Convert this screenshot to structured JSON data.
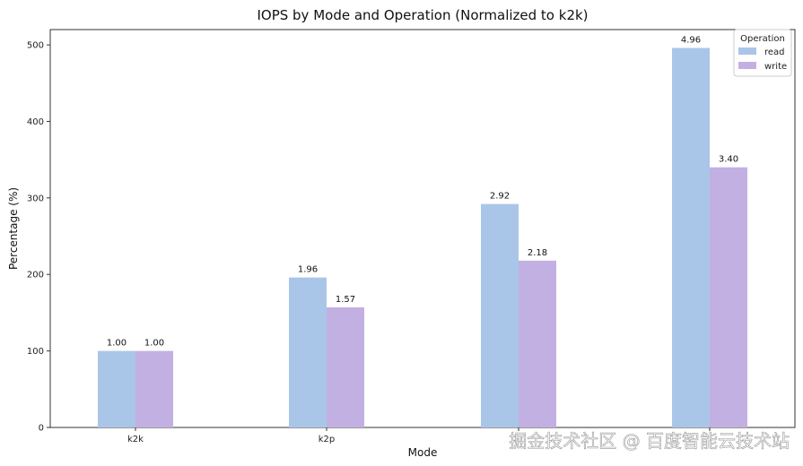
{
  "chart_data": {
    "type": "bar",
    "title": "IOPS by Mode and Operation (Normalized to k2k)",
    "xlabel": "Mode",
    "ylabel": "Percentage (%)",
    "categories": [
      "k2k",
      "k2p",
      "",
      ""
    ],
    "ylim": [
      0,
      520
    ],
    "yticks": [
      "0",
      "100",
      "200",
      "300",
      "400",
      "500"
    ],
    "grid": false,
    "legend": {
      "title": "Operation",
      "position": "top-right"
    },
    "series": [
      {
        "name": "read",
        "color": "#a9c6e8",
        "values": [
          100,
          196,
          292,
          496
        ],
        "labels": [
          "1.00",
          "1.96",
          "2.92",
          "4.96"
        ]
      },
      {
        "name": "write",
        "color": "#c3b0e2",
        "values": [
          100,
          157,
          218,
          340
        ],
        "labels": [
          "1.00",
          "1.57",
          "2.18",
          "3.40"
        ]
      }
    ]
  },
  "watermark": {
    "text": "掘金技术社区 @ 百度智能云技术站"
  }
}
